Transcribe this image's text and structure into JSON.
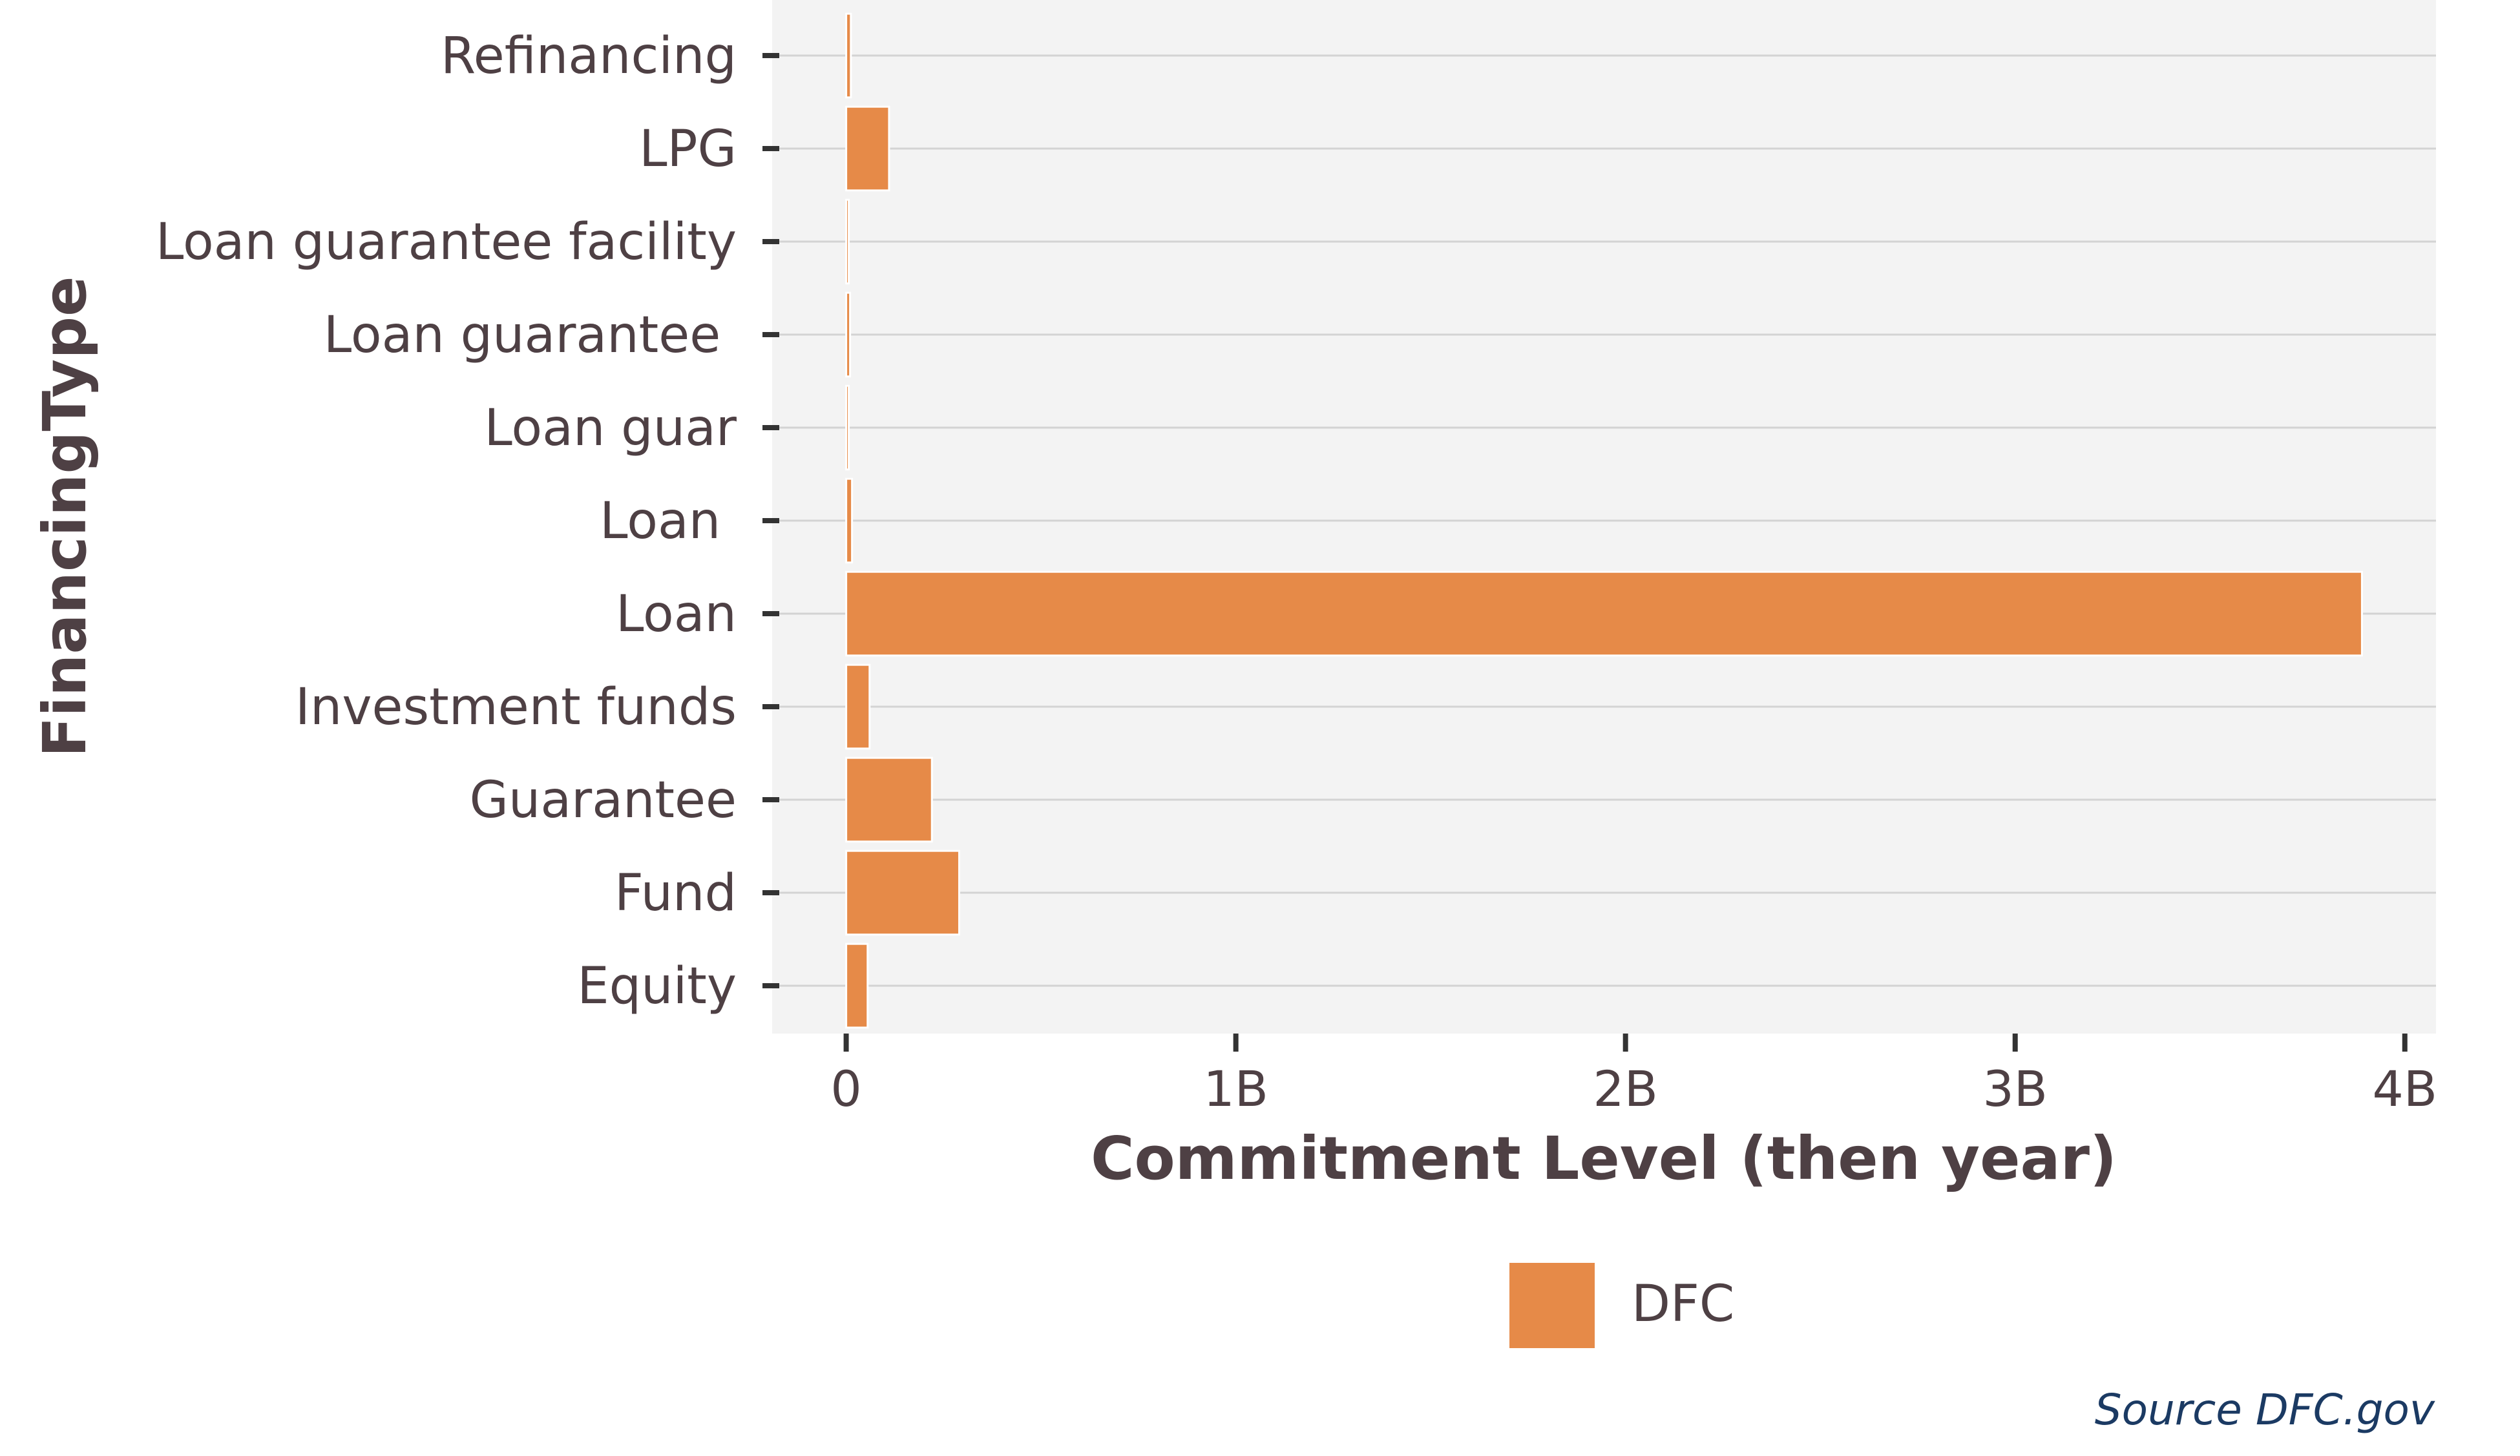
{
  "chart_data": {
    "type": "bar",
    "orientation": "horizontal",
    "title": "",
    "xlabel": "Commitment Level (then year)",
    "ylabel": "FinancingType",
    "categories": [
      "Refinancing",
      "LPG",
      "Loan guarantee facility",
      "Loan guarantee ",
      "Loan guar",
      "Loan ",
      "Loan",
      "Investment funds",
      "Guarantee",
      "Fund",
      "Equity"
    ],
    "series": [
      {
        "name": "DFC",
        "color": "#E68A48",
        "values": [
          12000000,
          110000000,
          3000000,
          10000000,
          2000000,
          15000000,
          3890000000,
          60000000,
          220000000,
          290000000,
          55000000
        ]
      }
    ],
    "xlim": [
      -190000000,
      4080000000
    ],
    "xticks": [
      0,
      1000000000,
      2000000000,
      3000000000,
      4000000000
    ],
    "xtick_labels": [
      "0",
      "1B",
      "2B",
      "3B",
      "4B"
    ],
    "grid": true,
    "legend_position": "bottom",
    "panel_background": "#F3F3F3",
    "text_color": "#4E4044"
  },
  "caption": "Source DFC.gov"
}
